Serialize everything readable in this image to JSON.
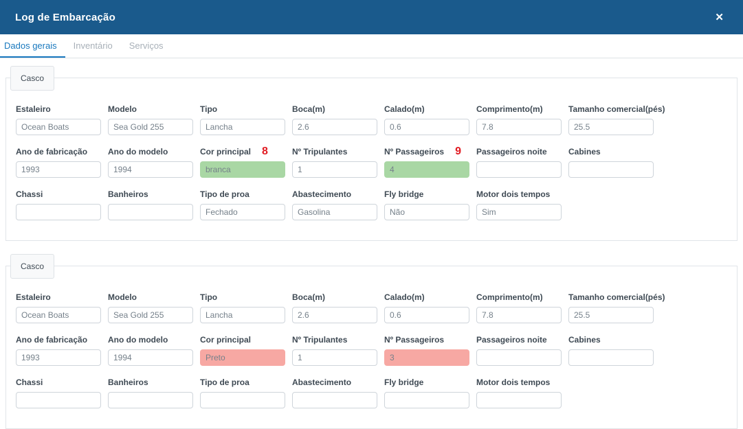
{
  "modal": {
    "title": "Log de Embarcação",
    "close": "✕"
  },
  "tabs": [
    {
      "label": "Dados gerais",
      "active": true
    },
    {
      "label": "Inventário",
      "active": false
    },
    {
      "label": "Serviços",
      "active": false
    }
  ],
  "colors": {
    "header_bg": "#1a5a8c",
    "tab_active": "#1878be",
    "highlight_green": "#a9d7a4",
    "highlight_red": "#f7a8a3",
    "annotation_red": "#e11b22"
  },
  "sections": [
    {
      "legend": "Casco",
      "rows": [
        [
          {
            "label": "Estaleiro",
            "value": "Ocean Boats"
          },
          {
            "label": "Modelo",
            "value": "Sea Gold 255"
          },
          {
            "label": "Tipo",
            "value": "Lancha"
          },
          {
            "label": "Boca(m)",
            "value": "2.6"
          },
          {
            "label": "Calado(m)",
            "value": "0.6"
          },
          {
            "label": "Comprimento(m)",
            "value": "7.8"
          },
          {
            "label": "Tamanho comercial(pés)",
            "value": "25.5"
          }
        ],
        [
          {
            "label": "Ano de fabricação",
            "value": "1993"
          },
          {
            "label": "Ano do modelo",
            "value": "1994"
          },
          {
            "label": "Cor principal",
            "value": "branca",
            "highlight": "green",
            "annotation": "8"
          },
          {
            "label": "Nº Tripulantes",
            "value": "1"
          },
          {
            "label": "Nº Passageiros",
            "value": "4",
            "highlight": "green",
            "annotation": "9"
          },
          {
            "label": "Passageiros noite",
            "value": ""
          },
          {
            "label": "Cabines",
            "value": ""
          }
        ],
        [
          {
            "label": "Chassi",
            "value": ""
          },
          {
            "label": "Banheiros",
            "value": ""
          },
          {
            "label": "Tipo de proa",
            "value": "Fechado"
          },
          {
            "label": "Abastecimento",
            "value": "Gasolina"
          },
          {
            "label": "Fly bridge",
            "value": "Não"
          },
          {
            "label": "Motor dois tempos",
            "value": "Sim"
          }
        ]
      ]
    },
    {
      "legend": "Casco",
      "rows": [
        [
          {
            "label": "Estaleiro",
            "value": "Ocean Boats"
          },
          {
            "label": "Modelo",
            "value": "Sea Gold 255"
          },
          {
            "label": "Tipo",
            "value": "Lancha"
          },
          {
            "label": "Boca(m)",
            "value": "2.6"
          },
          {
            "label": "Calado(m)",
            "value": "0.6"
          },
          {
            "label": "Comprimento(m)",
            "value": "7.8"
          },
          {
            "label": "Tamanho comercial(pés)",
            "value": "25.5"
          }
        ],
        [
          {
            "label": "Ano de fabricação",
            "value": "1993"
          },
          {
            "label": "Ano do modelo",
            "value": "1994"
          },
          {
            "label": "Cor principal",
            "value": "Preto",
            "highlight": "red"
          },
          {
            "label": "Nº Tripulantes",
            "value": "1"
          },
          {
            "label": "Nº Passageiros",
            "value": "3",
            "highlight": "red"
          },
          {
            "label": "Passageiros noite",
            "value": ""
          },
          {
            "label": "Cabines",
            "value": ""
          }
        ],
        [
          {
            "label": "Chassi",
            "value": ""
          },
          {
            "label": "Banheiros",
            "value": ""
          },
          {
            "label": "Tipo de proa",
            "value": ""
          },
          {
            "label": "Abastecimento",
            "value": ""
          },
          {
            "label": "Fly bridge",
            "value": ""
          },
          {
            "label": "Motor dois tempos",
            "value": ""
          }
        ]
      ]
    }
  ]
}
